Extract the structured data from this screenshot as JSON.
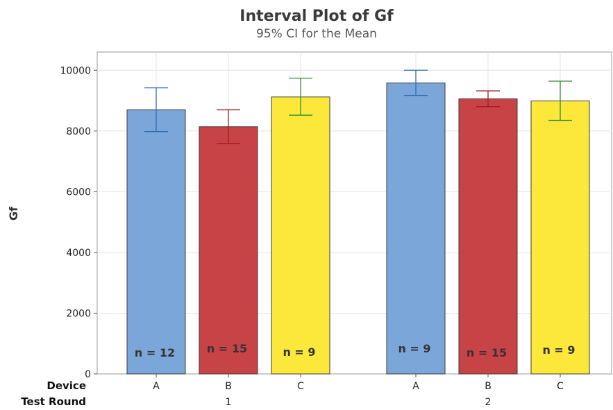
{
  "chart_data": {
    "type": "bar",
    "title": "Interval Plot of Gf",
    "subtitle": "95% CI for the Mean",
    "ylabel": "Gf",
    "ylim": [
      0,
      10600
    ],
    "yticks": [
      0,
      2000,
      4000,
      6000,
      8000,
      10000
    ],
    "grid": true,
    "row_labels": [
      "Device",
      "Test Round"
    ],
    "groups": [
      {
        "label": "1",
        "bars": [
          {
            "device": "A",
            "mean": 8700,
            "ci_low": 7980,
            "ci_high": 9420,
            "n_label": "n = 12",
            "color": "#7BA6D9"
          },
          {
            "device": "B",
            "mean": 8140,
            "ci_low": 7590,
            "ci_high": 8700,
            "n_label": "n = 15",
            "color": "#C84345"
          },
          {
            "device": "C",
            "mean": 9120,
            "ci_low": 8520,
            "ci_high": 9740,
            "n_label": "n = 9",
            "color": "#FCE83A"
          }
        ]
      },
      {
        "label": "2",
        "bars": [
          {
            "device": "A",
            "mean": 9580,
            "ci_low": 9170,
            "ci_high": 10000,
            "n_label": "n = 9",
            "color": "#7BA6D9"
          },
          {
            "device": "B",
            "mean": 9060,
            "ci_low": 8800,
            "ci_high": 9320,
            "n_label": "n = 15",
            "color": "#C84345"
          },
          {
            "device": "C",
            "mean": 8990,
            "ci_low": 8350,
            "ci_high": 9640,
            "n_label": "n = 9",
            "color": "#FCE83A"
          }
        ]
      }
    ],
    "ci_colors": {
      "A": "#2E6DB5",
      "B": "#9B1F22",
      "C": "#2E8B2E"
    }
  }
}
